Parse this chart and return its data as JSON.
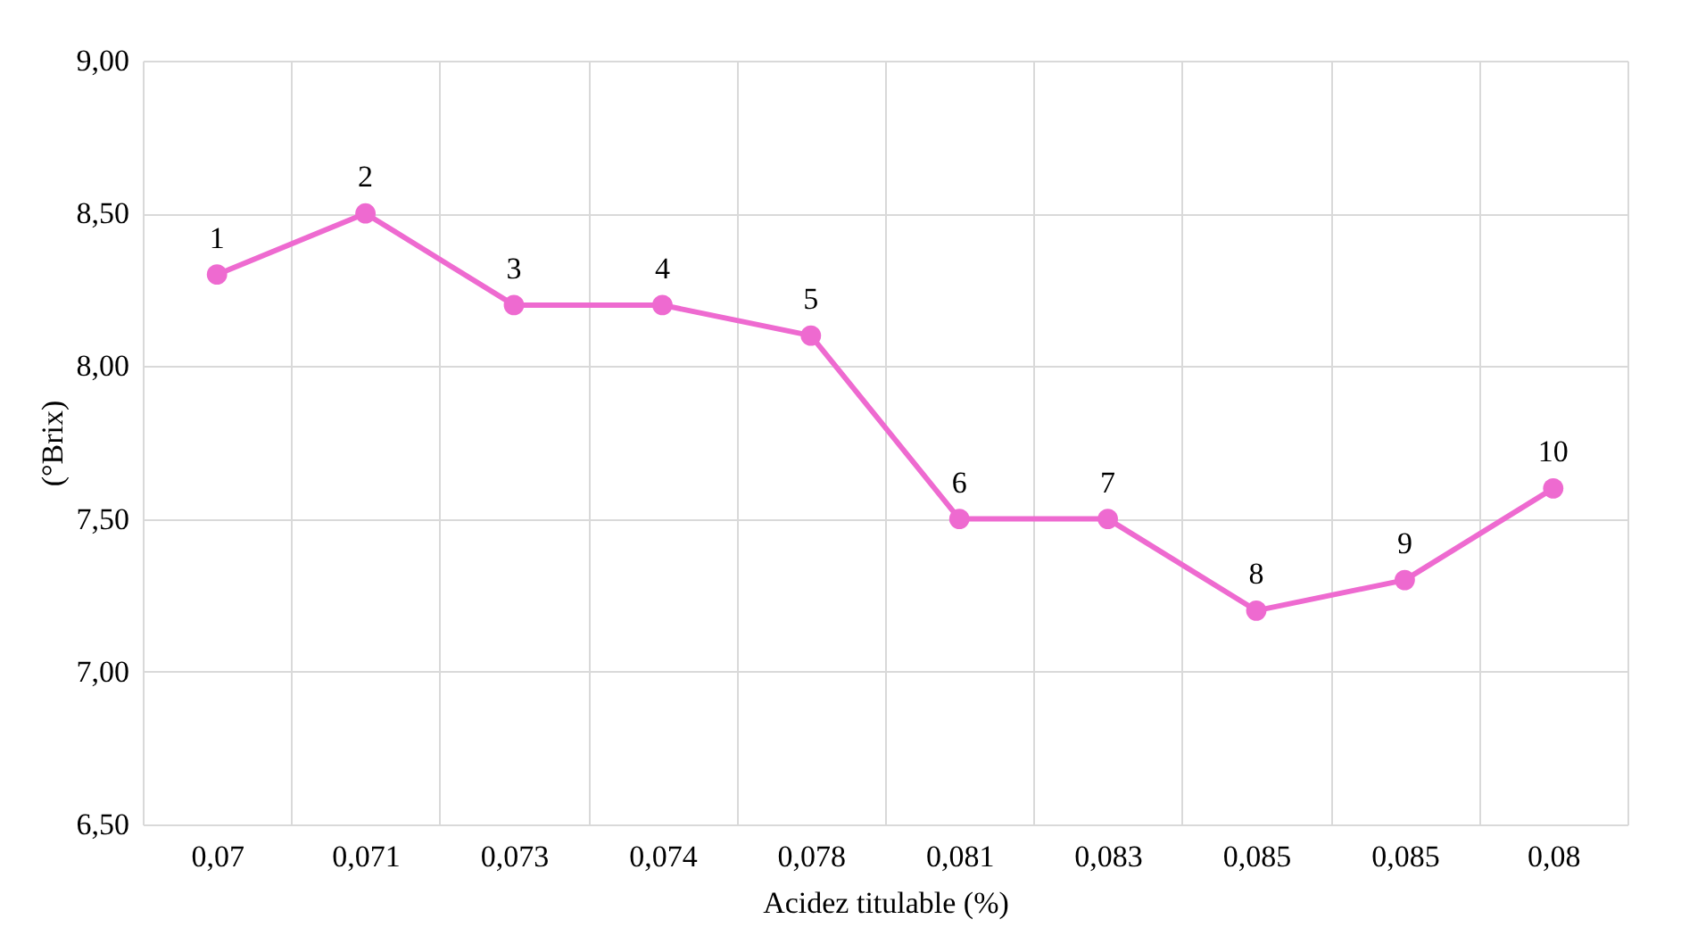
{
  "chart_data": {
    "type": "line",
    "xlabel": "Acidez titulable (%)",
    "ylabel": "(°Brix)",
    "categories": [
      "0,07",
      "0,071",
      "0,073",
      "0,074",
      "0,078",
      "0,081",
      "0,083",
      "0,085",
      "0,085",
      "0,08"
    ],
    "series": [
      {
        "color": "#ee6ad0",
        "values": [
          8.3,
          8.5,
          8.2,
          8.2,
          8.1,
          7.5,
          7.5,
          7.2,
          7.3,
          7.6
        ]
      }
    ],
    "annotations": [
      {
        "text": "1",
        "x": "0,07",
        "y": 8.3
      },
      {
        "text": "2",
        "x": "0,071",
        "y": 8.5
      },
      {
        "text": "3",
        "x": "0,073",
        "y": 8.2
      },
      {
        "text": "4",
        "x": "0,074",
        "y": 8.2
      },
      {
        "text": "5",
        "x": "0,078",
        "y": 8.1
      },
      {
        "text": "6",
        "x": "0,081",
        "y": 7.5
      },
      {
        "text": "7",
        "x": "0,083",
        "y": 7.5
      },
      {
        "text": "8",
        "x": "0,085",
        "y": 7.2
      },
      {
        "text": "9",
        "y": 7.3
      },
      {
        "text": "10",
        "x": "0,08",
        "y": 7.6
      }
    ],
    "ylim": [
      6.5,
      9.0
    ],
    "yticks": [
      {
        "value": 6.5,
        "label": "6,50"
      },
      {
        "value": 7.0,
        "label": "7,00"
      },
      {
        "value": 7.5,
        "label": "7,50"
      },
      {
        "value": 8.0,
        "label": "8,00"
      },
      {
        "value": 8.5,
        "label": "8,50"
      },
      {
        "value": 9.0,
        "label": "9,00"
      }
    ],
    "grid": true,
    "marker": "circle",
    "line_style": "solid"
  }
}
